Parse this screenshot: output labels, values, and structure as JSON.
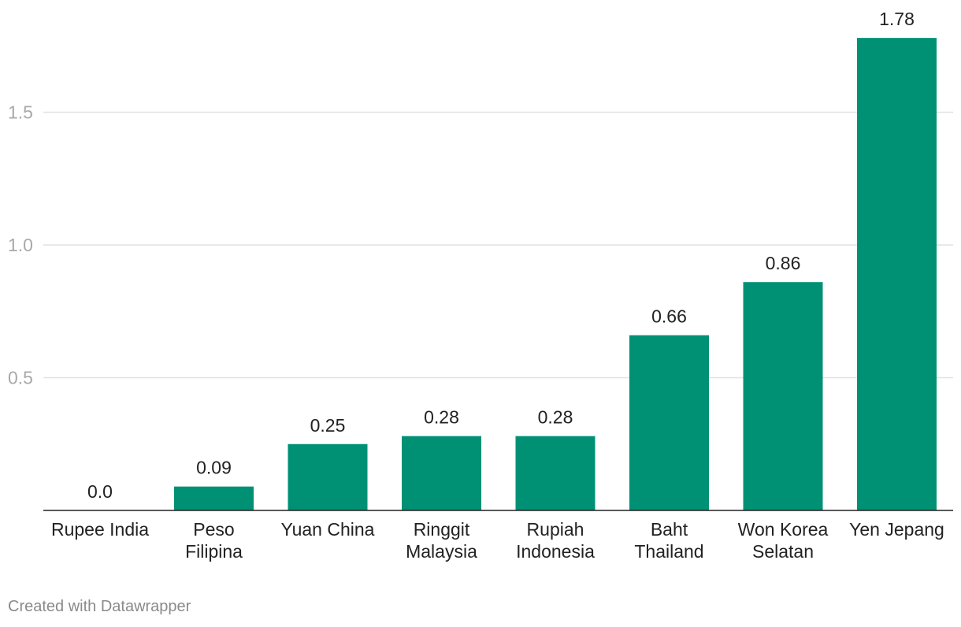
{
  "chart_data": {
    "type": "bar",
    "categories": [
      [
        "Rupee India"
      ],
      [
        "Peso",
        "Filipina"
      ],
      [
        "Yuan China"
      ],
      [
        "Ringgit",
        "Malaysia"
      ],
      [
        "Rupiah",
        "Indonesia"
      ],
      [
        "Baht",
        "Thailand"
      ],
      [
        "Won Korea",
        "Selatan"
      ],
      [
        "Yen Jepang"
      ]
    ],
    "values": [
      0.0,
      0.09,
      0.25,
      0.28,
      0.28,
      0.66,
      0.86,
      1.78
    ],
    "value_labels": [
      "0.0",
      "0.09",
      "0.25",
      "0.28",
      "0.28",
      "0.66",
      "0.86",
      "1.78"
    ],
    "y_ticks": [
      {
        "value": 0.5,
        "label": "0.5"
      },
      {
        "value": 1.0,
        "label": "1.0"
      },
      {
        "value": 1.5,
        "label": "1.5"
      }
    ],
    "ylim": [
      0,
      1.92
    ],
    "grid": true,
    "bar_color": "#009175"
  },
  "credit": "Created with Datawrapper"
}
